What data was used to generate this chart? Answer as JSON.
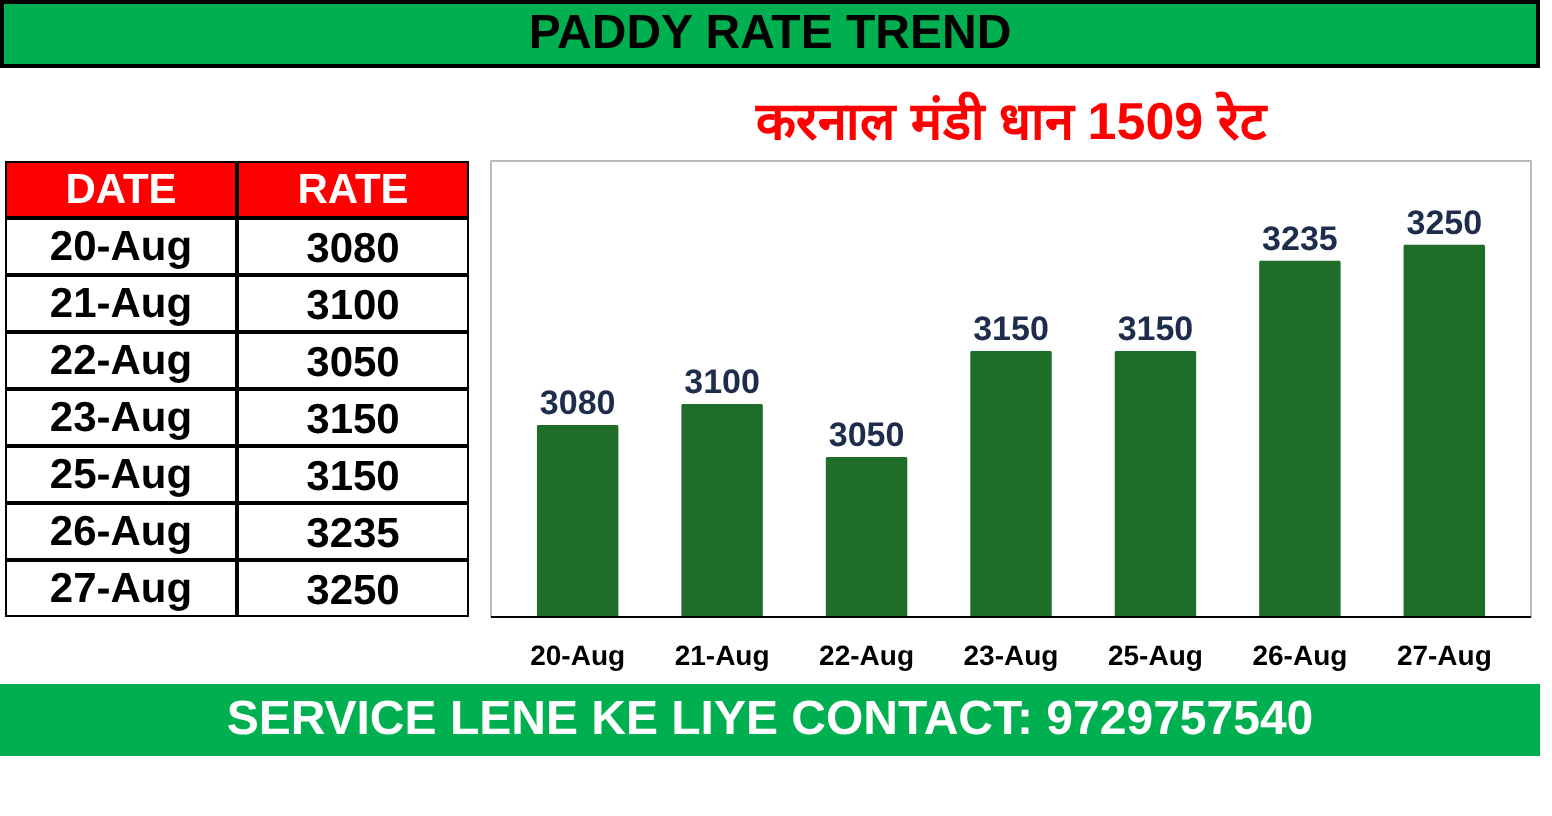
{
  "chart_data": [
    {
      "type": "other",
      "categories": [
        "20-Aug",
        "21-Aug",
        "22-Aug",
        "23-Aug",
        "25-Aug",
        "26-Aug",
        "27-Aug"
      ],
      "values": [
        3080,
        3100,
        3050,
        3150,
        3150,
        3235,
        3250
      ],
      "data_labels": true,
      "annotations": [
        "DATE",
        "RATE"
      ]
    },
    {
      "type": "bar",
      "title": "PADDY RATE TREND",
      "subtitle": "करनाल मंडी धान 1509 रेट",
      "categories": [
        "20-Aug",
        "21-Aug",
        "22-Aug",
        "23-Aug",
        "25-Aug",
        "26-Aug",
        "27-Aug"
      ],
      "values": [
        3080,
        3100,
        3050,
        3150,
        3150,
        3235,
        3250
      ],
      "color": "#1e6e2a",
      "ylim": [
        2900,
        3330
      ],
      "data_labels": true,
      "tick_labels": "x",
      "annotations": [
        "SERVICE LENE KE LIYE CONTACT: 9729757540"
      ]
    }
  ]
}
